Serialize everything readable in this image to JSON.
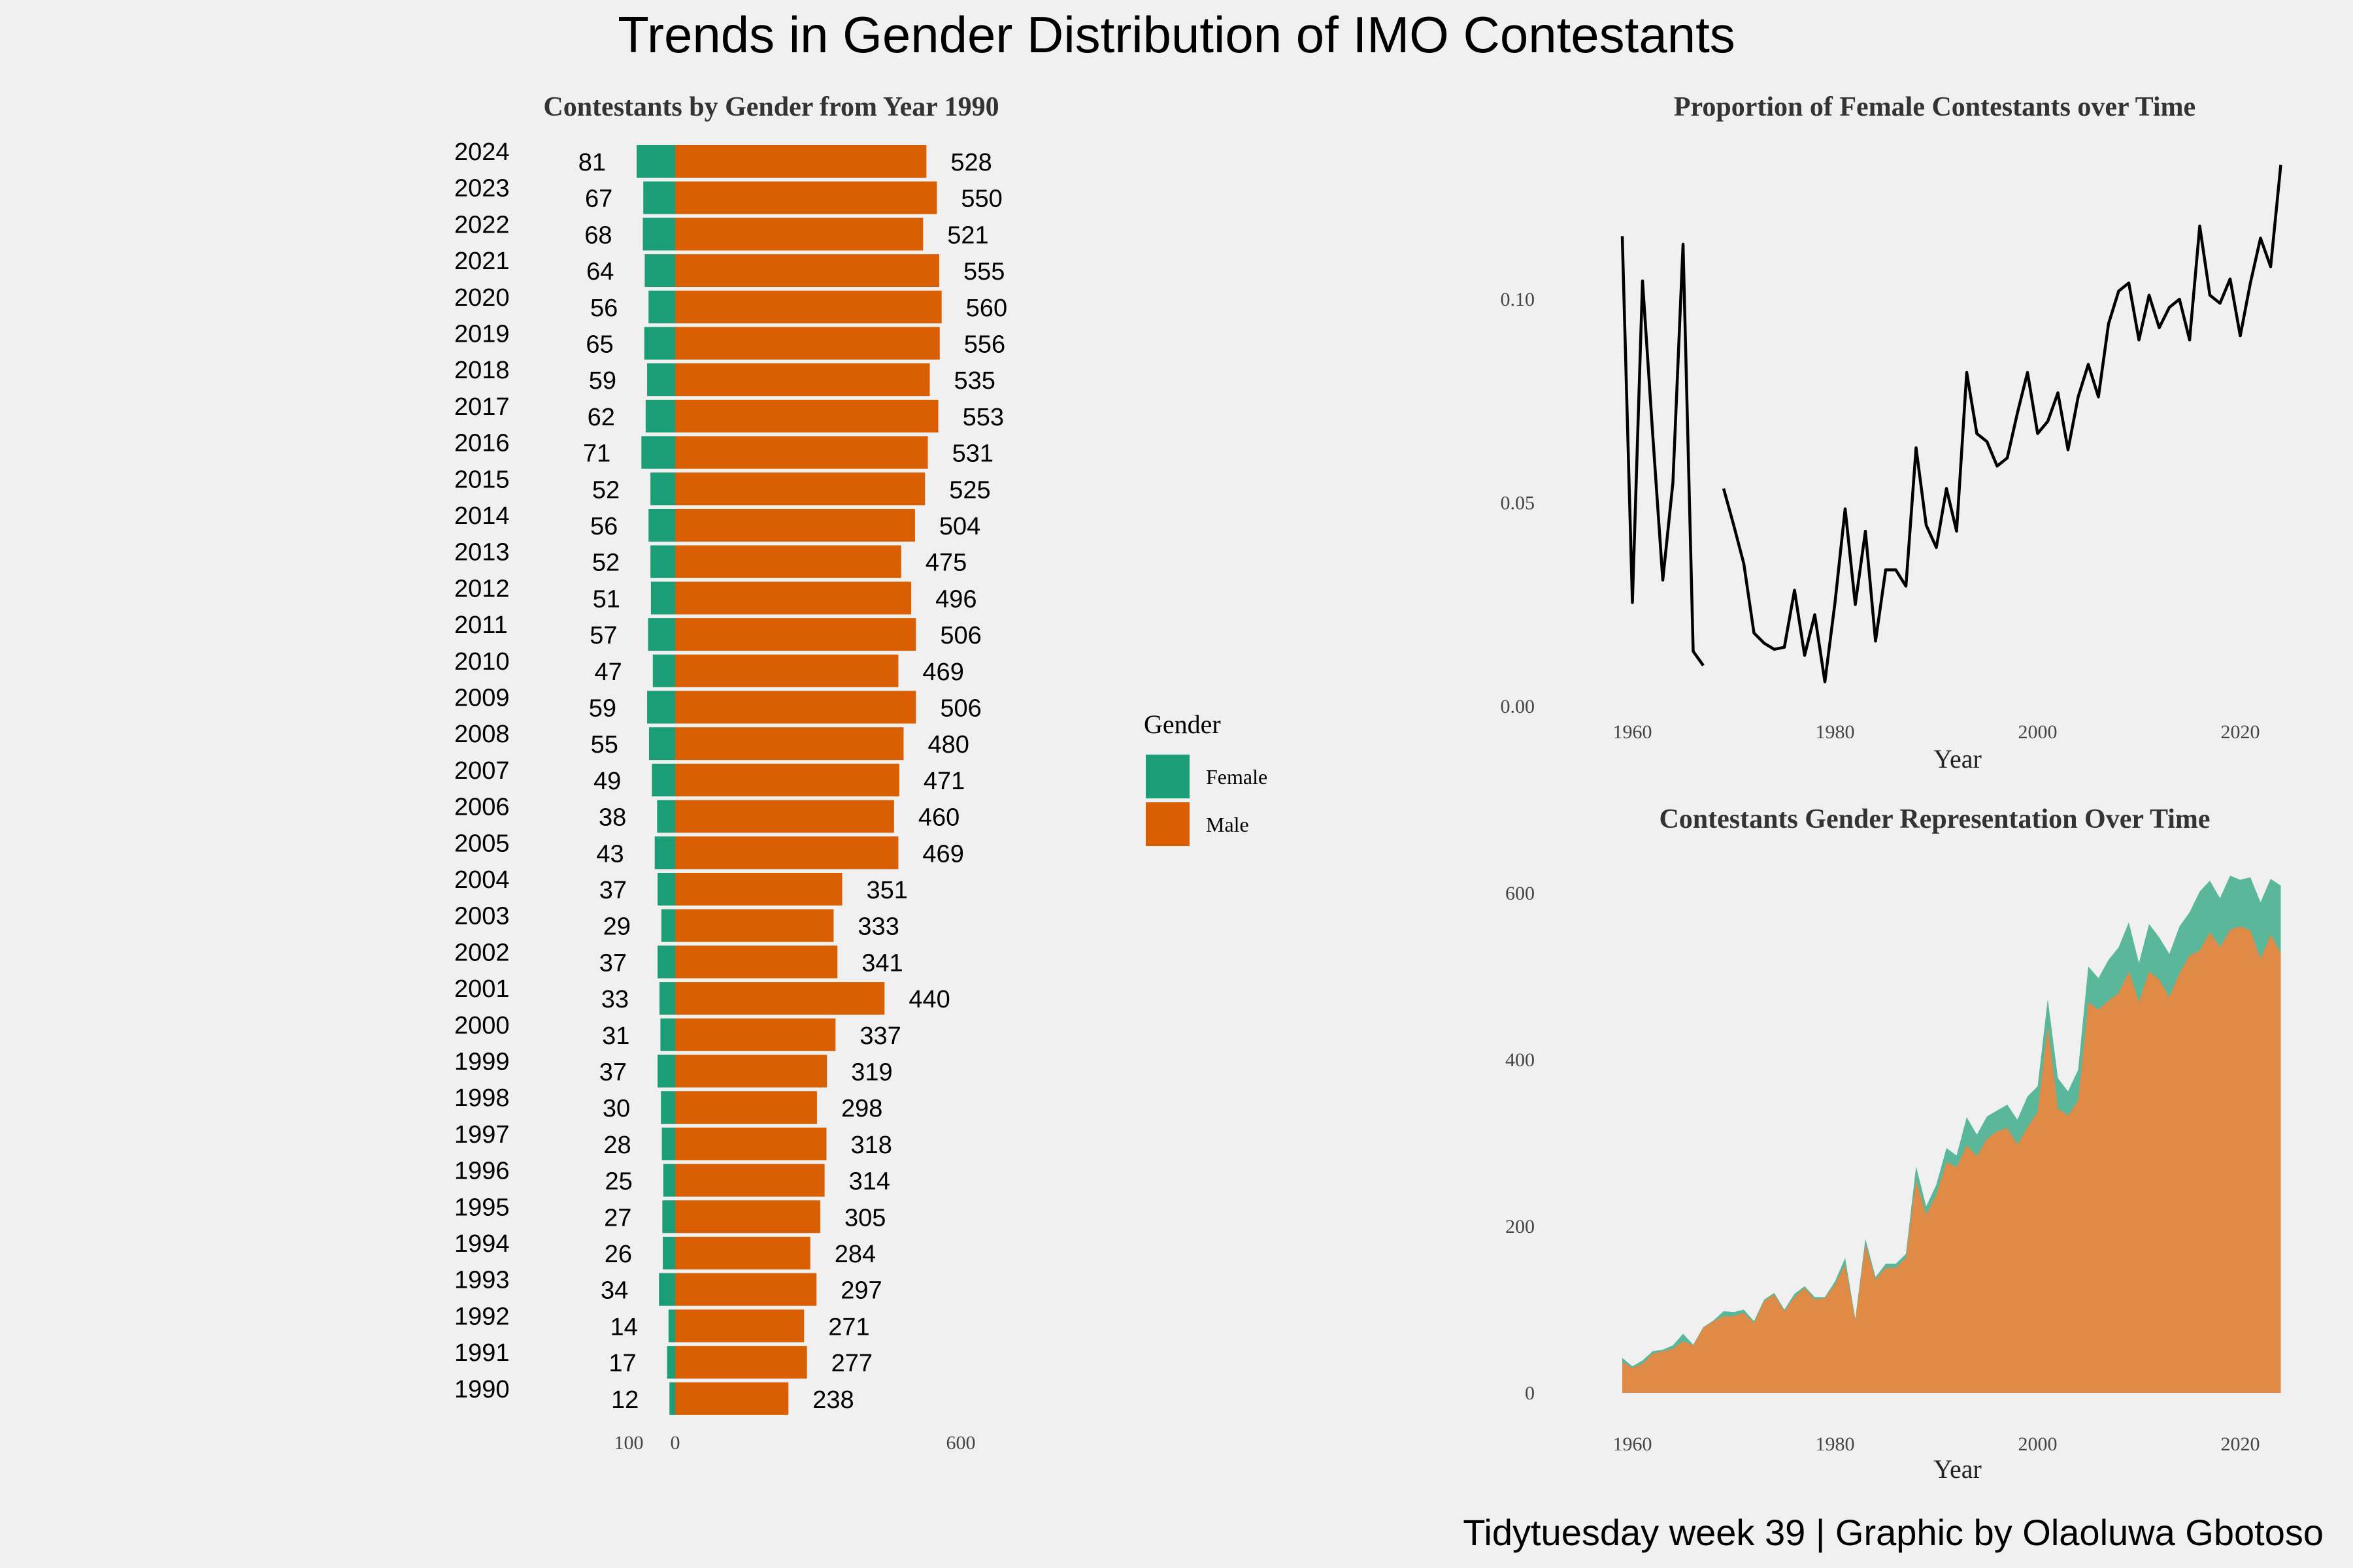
{
  "title": "Trends in Gender Distribution of IMO Contestants",
  "caption": "Tidytuesday week 39 | Graphic by Olaoluwa Gbotoso",
  "colors": {
    "female": "#1b9e77",
    "male": "#d95f02",
    "female_area": "#5bb79a",
    "male_area": "#e08a48",
    "background": "#f0f0f0",
    "line": "#000000"
  },
  "legend": {
    "title": "Gender",
    "items": [
      {
        "label": "Female",
        "color": "#1b9e77"
      },
      {
        "label": "Male",
        "color": "#d95f02"
      }
    ]
  },
  "chart_data": [
    {
      "type": "bar",
      "title": "Contestants by Gender from Year 1990",
      "orientation": "horizontal-diverging",
      "categories": [
        "2024",
        "2023",
        "2022",
        "2021",
        "2020",
        "2019",
        "2018",
        "2017",
        "2016",
        "2015",
        "2014",
        "2013",
        "2012",
        "2011",
        "2010",
        "2009",
        "2008",
        "2007",
        "2006",
        "2005",
        "2004",
        "2003",
        "2002",
        "2001",
        "2000",
        "1999",
        "1998",
        "1997",
        "1996",
        "1995",
        "1994",
        "1993",
        "1992",
        "1991",
        "1990"
      ],
      "series": [
        {
          "name": "Female",
          "values": [
            81,
            67,
            68,
            64,
            56,
            65,
            59,
            62,
            71,
            52,
            56,
            52,
            51,
            57,
            47,
            59,
            55,
            49,
            38,
            43,
            37,
            29,
            37,
            33,
            31,
            37,
            30,
            28,
            25,
            27,
            26,
            34,
            14,
            17,
            12
          ]
        },
        {
          "name": "Male",
          "values": [
            528,
            550,
            521,
            555,
            560,
            556,
            535,
            553,
            531,
            525,
            504,
            475,
            496,
            506,
            469,
            506,
            480,
            471,
            460,
            469,
            351,
            333,
            341,
            440,
            337,
            319,
            298,
            318,
            314,
            305,
            284,
            297,
            271,
            277,
            238
          ]
        }
      ],
      "x_ticks": [
        "100",
        "0",
        "600"
      ],
      "xlim": [
        -100,
        600
      ]
    },
    {
      "type": "line",
      "title": "Proportion of Female Contestants over Time",
      "xlabel": "Year",
      "x_ticks": [
        "1960",
        "1980",
        "2000",
        "2020"
      ],
      "y_ticks": [
        "0.00",
        "0.05",
        "0.10"
      ],
      "xlim": [
        1957,
        2026
      ],
      "ylim": [
        0,
        0.135
      ],
      "segments": [
        [
          [
            1959,
            0.1155
          ],
          [
            1960,
            0.0255
          ],
          [
            1961,
            0.1045
          ],
          [
            1962,
            0.067
          ],
          [
            1963,
            0.031
          ],
          [
            1964,
            0.055
          ],
          [
            1965,
            0.1135
          ],
          [
            1966,
            0.0135
          ],
          [
            1967,
            0.01
          ]
        ],
        [
          [
            1969,
            0.0535
          ],
          [
            1970,
            0.0445
          ],
          [
            1971,
            0.035
          ],
          [
            1972,
            0.018
          ],
          [
            1973,
            0.0155
          ],
          [
            1974,
            0.014
          ],
          [
            1975,
            0.0145
          ],
          [
            1976,
            0.0285
          ],
          [
            1977,
            0.0125
          ],
          [
            1978,
            0.0225
          ],
          [
            1979,
            0.006
          ],
          [
            1980,
            0.0255
          ],
          [
            1981,
            0.0485
          ],
          [
            1982,
            0.025
          ],
          [
            1983,
            0.043
          ],
          [
            1984,
            0.016
          ],
          [
            1985,
            0.0335
          ],
          [
            1986,
            0.0335
          ],
          [
            1987,
            0.0295
          ],
          [
            1988,
            0.0635
          ],
          [
            1989,
            0.0445
          ],
          [
            1990,
            0.039
          ],
          [
            1991,
            0.0535
          ],
          [
            1992,
            0.043
          ],
          [
            1993,
            0.082
          ],
          [
            1994,
            0.067
          ],
          [
            1995,
            0.065
          ],
          [
            1996,
            0.059
          ],
          [
            1997,
            0.061
          ],
          [
            1998,
            0.072
          ],
          [
            1999,
            0.082
          ],
          [
            2000,
            0.067
          ],
          [
            2001,
            0.07
          ],
          [
            2002,
            0.077
          ],
          [
            2003,
            0.063
          ],
          [
            2004,
            0.076
          ],
          [
            2005,
            0.084
          ],
          [
            2006,
            0.076
          ],
          [
            2007,
            0.094
          ],
          [
            2008,
            0.102
          ],
          [
            2009,
            0.104
          ],
          [
            2010,
            0.09
          ],
          [
            2011,
            0.101
          ],
          [
            2012,
            0.093
          ],
          [
            2013,
            0.098
          ],
          [
            2014,
            0.1
          ],
          [
            2015,
            0.09
          ],
          [
            2016,
            0.118
          ],
          [
            2017,
            0.101
          ],
          [
            2018,
            0.099
          ],
          [
            2019,
            0.105
          ],
          [
            2020,
            0.091
          ],
          [
            2021,
            0.104
          ],
          [
            2022,
            0.115
          ],
          [
            2023,
            0.108
          ],
          [
            2024,
            0.133
          ]
        ]
      ]
    },
    {
      "type": "area",
      "title": "Contestants Gender Representation Over Time",
      "xlabel": "Year",
      "x_ticks": [
        "1960",
        "1980",
        "2000",
        "2020"
      ],
      "y_ticks": [
        "0",
        "200",
        "400",
        "600"
      ],
      "xlim": [
        1957,
        2026
      ],
      "ylim": [
        0,
        640
      ],
      "x": [
        1959,
        1960,
        1961,
        1962,
        1963,
        1964,
        1965,
        1966,
        1967,
        1968,
        1969,
        1970,
        1971,
        1972,
        1973,
        1974,
        1975,
        1976,
        1977,
        1978,
        1979,
        1980,
        1981,
        1982,
        1983,
        1984,
        1985,
        1986,
        1987,
        1988,
        1989,
        1990,
        1991,
        1992,
        1993,
        1994,
        1995,
        1996,
        1997,
        1998,
        1999,
        2000,
        2001,
        2002,
        2003,
        2004,
        2005,
        2006,
        2007,
        2008,
        2009,
        2010,
        2011,
        2012,
        2013,
        2014,
        2015,
        2016,
        2017,
        2018,
        2019,
        2020,
        2021,
        2022,
        2023,
        2024
      ],
      "series": [
        {
          "name": "Male",
          "values": [
            37,
            30,
            35,
            47,
            50,
            53,
            62,
            57,
            78,
            86,
            92,
            92,
            96,
            84,
            110,
            118,
            98,
            115,
            126,
            112,
            114,
            130,
            154,
            87,
            178,
            136,
            150,
            150,
            162,
            255,
            214,
            238,
            277,
            271,
            297,
            284,
            305,
            314,
            318,
            298,
            319,
            337,
            440,
            341,
            333,
            351,
            469,
            460,
            471,
            480,
            506,
            469,
            506,
            496,
            475,
            504,
            525,
            531,
            553,
            535,
            556,
            560,
            555,
            521,
            550,
            528
          ]
        },
        {
          "name": "Female",
          "values": [
            5,
            2,
            4,
            3,
            2,
            4,
            9,
            1,
            1,
            1,
            6,
            5,
            4,
            2,
            2,
            2,
            2,
            4,
            2,
            3,
            1,
            4,
            8,
            2,
            7,
            3,
            5,
            5,
            5,
            17,
            10,
            12,
            17,
            14,
            34,
            26,
            27,
            25,
            28,
            30,
            37,
            31,
            33,
            37,
            29,
            37,
            43,
            38,
            49,
            55,
            59,
            47,
            57,
            51,
            52,
            56,
            52,
            71,
            62,
            59,
            65,
            56,
            64,
            68,
            67,
            81
          ]
        }
      ]
    }
  ]
}
